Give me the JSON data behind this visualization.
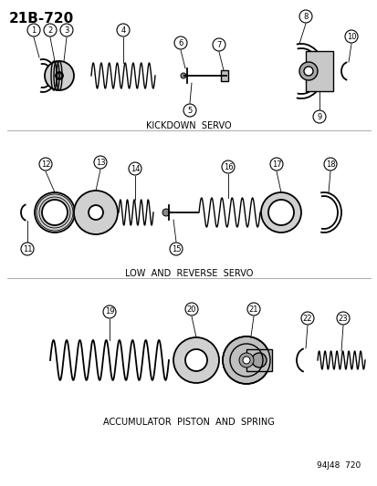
{
  "title": "21B-720",
  "bg_color": "#ffffff",
  "line_color": "#000000",
  "section1_label": "KICKDOWN  SERVO",
  "section2_label": "LOW  AND  REVERSE  SERVO",
  "section3_label": "ACCUMULATOR  PISTON  AND  SPRING",
  "footer": "94J48  720",
  "part_numbers": [
    1,
    2,
    3,
    4,
    5,
    6,
    7,
    8,
    9,
    10,
    11,
    12,
    13,
    14,
    15,
    16,
    17,
    18,
    19,
    20,
    21,
    22,
    23
  ]
}
